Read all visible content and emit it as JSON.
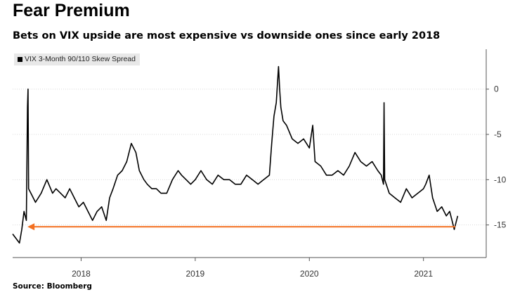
{
  "header": {
    "title": "Fear Premium",
    "subtitle": "Bets on VIX upside are most expensive vs downside ones since early 2018"
  },
  "legend": {
    "label": "VIX 3-Month 90/110 Skew Spread"
  },
  "footer": {
    "source": "Source: Bloomberg"
  },
  "colors": {
    "line": "#000000",
    "arrow": "#f37021",
    "grid": "#d9d9d9"
  },
  "chart_data": {
    "type": "line",
    "title": "Fear Premium",
    "subtitle": "Bets on VIX upside are most expensive vs downside ones since early 2018",
    "xlabel": "",
    "ylabel": "",
    "xlim": [
      2017.4,
      2021.55
    ],
    "ylim": [
      -18.6,
      4.4
    ],
    "y_ticks": [
      0,
      -5,
      -10,
      -15
    ],
    "x_ticks": [
      {
        "label": "2018",
        "value": 2018.0
      },
      {
        "label": "2019",
        "value": 2019.0
      },
      {
        "label": "2020",
        "value": 2020.0
      },
      {
        "label": "2021",
        "value": 2021.0
      }
    ],
    "grid": true,
    "y_axis_side": "right",
    "legend_position": "top-left",
    "series": [
      {
        "name": "VIX 3-Month 90/110 Skew Spread",
        "x": [
          2017.4,
          2017.43,
          2017.46,
          2017.48,
          2017.5,
          2017.52,
          2017.53,
          2017.535,
          2017.54,
          2017.56,
          2017.6,
          2017.65,
          2017.7,
          2017.75,
          2017.78,
          2017.82,
          2017.86,
          2017.9,
          2017.94,
          2017.98,
          2018.02,
          2018.06,
          2018.1,
          2018.14,
          2018.18,
          2018.22,
          2018.25,
          2018.28,
          2018.32,
          2018.36,
          2018.4,
          2018.44,
          2018.48,
          2018.51,
          2018.55,
          2018.58,
          2018.62,
          2018.66,
          2018.7,
          2018.75,
          2018.8,
          2018.85,
          2018.88,
          2018.92,
          2018.96,
          2019.0,
          2019.05,
          2019.1,
          2019.15,
          2019.2,
          2019.25,
          2019.3,
          2019.35,
          2019.4,
          2019.45,
          2019.5,
          2019.55,
          2019.6,
          2019.65,
          2019.67,
          2019.69,
          2019.71,
          2019.73,
          2019.74,
          2019.75,
          2019.77,
          2019.8,
          2019.85,
          2019.9,
          2019.95,
          2020.0,
          2020.03,
          2020.05,
          2020.1,
          2020.15,
          2020.2,
          2020.25,
          2020.3,
          2020.35,
          2020.4,
          2020.45,
          2020.5,
          2020.55,
          2020.6,
          2020.63,
          2020.65,
          2020.655,
          2020.66,
          2020.7,
          2020.75,
          2020.8,
          2020.85,
          2020.9,
          2020.95,
          2021.0,
          2021.02,
          2021.05,
          2021.08,
          2021.12,
          2021.16,
          2021.2,
          2021.23,
          2021.25,
          2021.27,
          2021.3
        ],
        "y": [
          -16.0,
          -16.5,
          -17.0,
          -15.5,
          -13.5,
          -14.5,
          -2.0,
          0.0,
          -11.0,
          -11.5,
          -12.5,
          -11.5,
          -10.0,
          -11.5,
          -11.0,
          -11.5,
          -12.0,
          -11.0,
          -12.0,
          -13.0,
          -12.5,
          -13.5,
          -14.5,
          -13.5,
          -13.0,
          -14.5,
          -12.0,
          -11.0,
          -9.5,
          -9.0,
          -8.0,
          -6.0,
          -7.0,
          -9.0,
          -10.0,
          -10.5,
          -11.0,
          -11.0,
          -11.5,
          -11.5,
          -10.0,
          -9.0,
          -9.5,
          -10.0,
          -10.5,
          -10.0,
          -9.0,
          -10.0,
          -10.5,
          -9.5,
          -10.0,
          -10.0,
          -10.5,
          -10.5,
          -9.5,
          -10.0,
          -10.5,
          -10.0,
          -9.5,
          -6.0,
          -3.0,
          -1.5,
          2.5,
          0.0,
          -2.0,
          -3.5,
          -4.0,
          -5.5,
          -6.0,
          -5.5,
          -6.5,
          -4.0,
          -8.0,
          -8.5,
          -9.5,
          -9.5,
          -9.0,
          -9.5,
          -8.5,
          -7.0,
          -8.0,
          -8.5,
          -8.0,
          -9.0,
          -9.5,
          -10.5,
          -1.5,
          -10.0,
          -11.5,
          -12.0,
          -12.5,
          -11.0,
          -12.0,
          -11.5,
          -11.0,
          -10.5,
          -9.5,
          -12.0,
          -13.5,
          -13.0,
          -14.0,
          -13.5,
          -14.5,
          -15.5,
          -14.0
        ]
      }
    ],
    "annotations": [
      {
        "type": "arrow",
        "from": {
          "x": 2021.28,
          "y": -15.2
        },
        "to": {
          "x": 2017.53,
          "y": -15.2
        },
        "color": "#f37021"
      }
    ]
  }
}
